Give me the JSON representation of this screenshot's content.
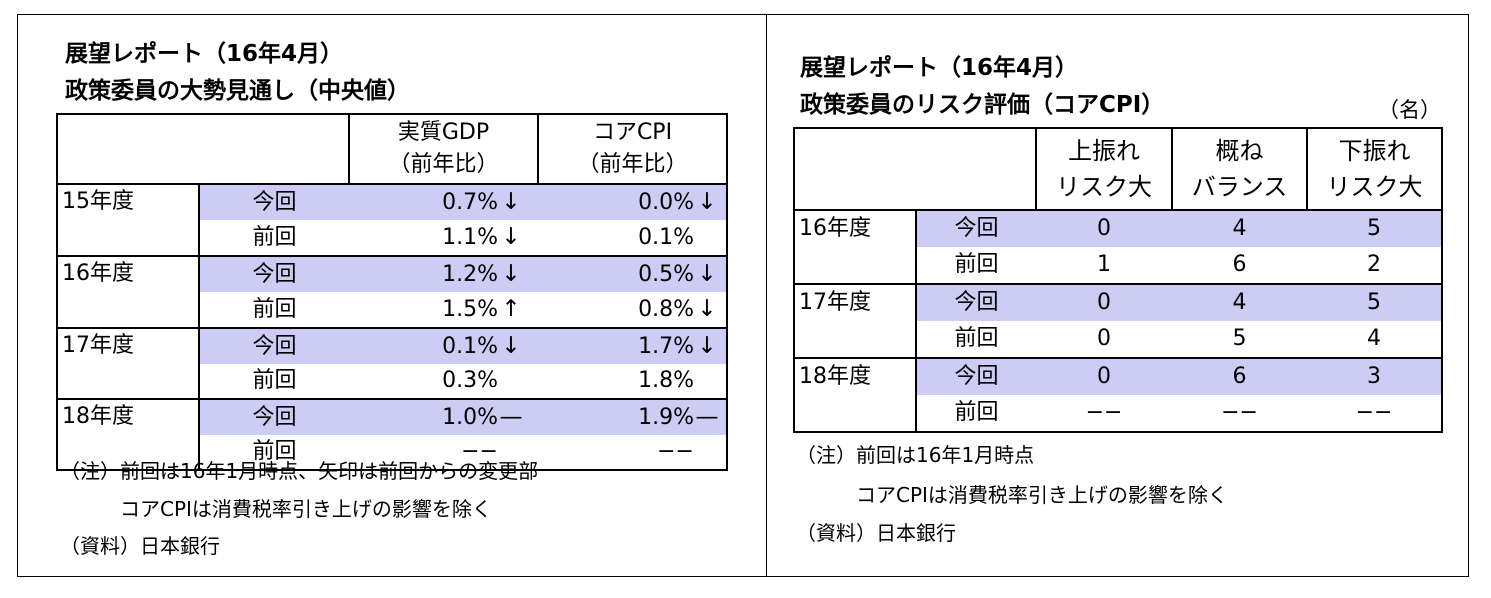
{
  "left": {
    "title_line1": "展望レポート（16年4月）",
    "title_line2": "政策委員の大勢見通し（中央値）",
    "headers": [
      {
        "line1": "実質GDP",
        "line2": "（前年比）"
      },
      {
        "line1": "コアCPI",
        "line2": "（前年比）"
      }
    ],
    "rows": [
      {
        "year": "15年度",
        "label": "今回",
        "gdp": "0.7%",
        "gdp_arrow": "↓",
        "cpi": "0.0%",
        "cpi_arrow": "↓"
      },
      {
        "year": "",
        "label": "前回",
        "gdp": "1.1%",
        "gdp_arrow": "↓",
        "cpi": "0.1%",
        "cpi_arrow": ""
      },
      {
        "year": "16年度",
        "label": "今回",
        "gdp": "1.2%",
        "gdp_arrow": "↓",
        "cpi": "0.5%",
        "cpi_arrow": "↓"
      },
      {
        "year": "",
        "label": "前回",
        "gdp": "1.5%",
        "gdp_arrow": "↑",
        "cpi": "0.8%",
        "cpi_arrow": "↓"
      },
      {
        "year": "17年度",
        "label": "今回",
        "gdp": "0.1%",
        "gdp_arrow": "↓",
        "cpi": "1.7%",
        "cpi_arrow": "↓"
      },
      {
        "year": "",
        "label": "前回",
        "gdp": "0.3%",
        "gdp_arrow": "",
        "cpi": "1.8%",
        "cpi_arrow": ""
      },
      {
        "year": "18年度",
        "label": "今回",
        "gdp": "1.0%",
        "gdp_arrow": "—",
        "cpi": "1.9%",
        "cpi_arrow": "—"
      },
      {
        "year": "",
        "label": "前回",
        "gdp": "−−",
        "gdp_arrow": "",
        "cpi": "−−",
        "cpi_arrow": ""
      }
    ],
    "notes": [
      "（注）前回は16年1月時点、矢印は前回からの変更部",
      "　　　コアCPIは消費税率引き上げの影響を除く",
      "（資料）日本銀行"
    ]
  },
  "right": {
    "title_line1": "展望レポート（16年4月）",
    "title_line2": "政策委員のリスク評価（コアCPI）",
    "unit": "（名）",
    "headers": [
      {
        "line1": "上振れ",
        "line2": "リスク大"
      },
      {
        "line1": "概ね",
        "line2": "バランス"
      },
      {
        "line1": "下振れ",
        "line2": "リスク大"
      }
    ],
    "rows": [
      {
        "year": "16年度",
        "label": "今回",
        "up": "0",
        "bal": "4",
        "down": "5"
      },
      {
        "year": "",
        "label": "前回",
        "up": "1",
        "bal": "6",
        "down": "2"
      },
      {
        "year": "17年度",
        "label": "今回",
        "up": "0",
        "bal": "4",
        "down": "5"
      },
      {
        "year": "",
        "label": "前回",
        "up": "0",
        "bal": "5",
        "down": "4"
      },
      {
        "year": "18年度",
        "label": "今回",
        "up": "0",
        "bal": "6",
        "down": "3"
      },
      {
        "year": "",
        "label": "前回",
        "up": "−−",
        "bal": "−−",
        "down": "−−"
      }
    ],
    "notes": [
      "（注）前回は16年1月時点",
      "　　　コアCPIは消費税率引き上げの影響を除く",
      "（資料）日本銀行"
    ]
  },
  "colors": {
    "shade": "#ccccf4",
    "border": "#000000"
  }
}
